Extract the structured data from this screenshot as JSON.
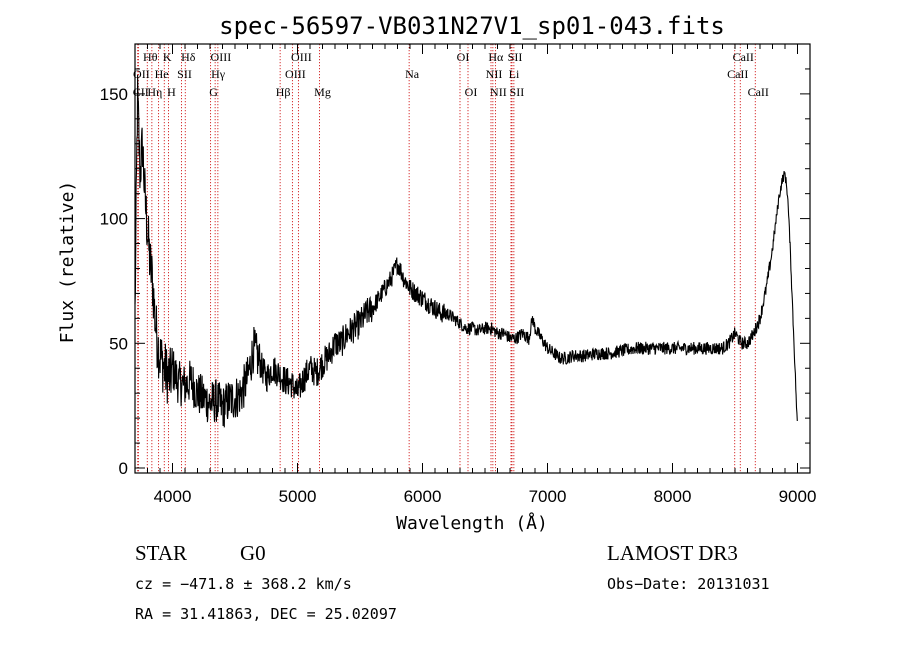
{
  "chart_data": {
    "type": "line",
    "title": "spec-56597-VB031N27V1_sp01-043.fits",
    "xlabel": "Wavelength (Å)",
    "ylabel": "Flux (relative)",
    "xlim": [
      3700,
      9100
    ],
    "ylim": [
      -2,
      170
    ],
    "xticks": [
      4000,
      5000,
      6000,
      7000,
      8000,
      9000
    ],
    "yticks": [
      0,
      50,
      100,
      150
    ],
    "grid": false,
    "series": [
      {
        "name": "spectrum",
        "x": [
          3700,
          3720,
          3740,
          3760,
          3780,
          3800,
          3820,
          3840,
          3860,
          3880,
          3900,
          3920,
          3950,
          3980,
          4000,
          4050,
          4100,
          4150,
          4200,
          4250,
          4300,
          4350,
          4400,
          4450,
          4500,
          4550,
          4600,
          4650,
          4700,
          4750,
          4800,
          4850,
          4900,
          4950,
          5000,
          5050,
          5100,
          5150,
          5200,
          5250,
          5300,
          5350,
          5400,
          5450,
          5500,
          5550,
          5600,
          5650,
          5700,
          5750,
          5800,
          5820,
          5850,
          5900,
          5950,
          6000,
          6050,
          6100,
          6150,
          6200,
          6250,
          6300,
          6350,
          6400,
          6450,
          6500,
          6550,
          6600,
          6650,
          6700,
          6750,
          6800,
          6850,
          6880,
          6900,
          6950,
          7000,
          7050,
          7100,
          7150,
          7200,
          7300,
          7400,
          7500,
          7600,
          7700,
          7800,
          7900,
          8000,
          8100,
          8200,
          8300,
          8400,
          8450,
          8500,
          8550,
          8600,
          8650,
          8700,
          8750,
          8800,
          8850,
          8880,
          8900,
          8920,
          8940,
          8960,
          8980,
          9000
        ],
        "y": [
          62,
          150,
          118,
          130,
          108,
          95,
          82,
          75,
          60,
          50,
          45,
          42,
          38,
          36,
          40,
          34,
          33,
          35,
          30,
          28,
          26,
          27,
          24,
          27,
          28,
          30,
          36,
          48,
          42,
          36,
          40,
          38,
          35,
          34,
          30,
          36,
          40,
          38,
          42,
          45,
          50,
          50,
          54,
          56,
          58,
          62,
          64,
          68,
          72,
          76,
          82,
          80,
          76,
          72,
          70,
          68,
          66,
          64,
          62,
          62,
          60,
          58,
          56,
          56,
          55,
          56,
          56,
          54,
          54,
          52,
          52,
          54,
          52,
          60,
          56,
          52,
          48,
          46,
          44,
          44,
          45,
          45,
          46,
          46,
          47,
          48,
          48,
          48,
          48,
          48,
          48,
          48,
          48,
          50,
          54,
          50,
          50,
          54,
          60,
          72,
          88,
          108,
          116,
          118,
          110,
          90,
          65,
          40,
          15
        ]
      }
    ],
    "lines": [
      {
        "name": "CII",
        "wavelength": 3722
      },
      {
        "name": "OII",
        "wavelength": 3727
      },
      {
        "name": "Hθ",
        "wavelength": 3798
      },
      {
        "name": "Hη",
        "wavelength": 3835
      },
      {
        "name": "CaII K",
        "label": "K",
        "wavelength": 3934
      },
      {
        "name": "He",
        "wavelength": 3889
      },
      {
        "name": "CaII H",
        "label": "H",
        "wavelength": 3968
      },
      {
        "name": "SII",
        "wavelength": 4072
      },
      {
        "name": "Hδ",
        "wavelength": 4102
      },
      {
        "name": "G",
        "wavelength": 4305
      },
      {
        "name": "Hγ",
        "wavelength": 4341
      },
      {
        "name": "OIII",
        "wavelength": 4363
      },
      {
        "name": "Hβ",
        "wavelength": 4861
      },
      {
        "name": "OIII",
        "wavelength": 4959
      },
      {
        "name": "OIII",
        "wavelength": 5007
      },
      {
        "name": "Mg",
        "wavelength": 5176
      },
      {
        "name": "Na",
        "wavelength": 5893
      },
      {
        "name": "OI",
        "wavelength": 6300
      },
      {
        "name": "OI",
        "wavelength": 6364
      },
      {
        "name": "NII",
        "wavelength": 6548
      },
      {
        "name": "Hα",
        "wavelength": 6563
      },
      {
        "name": "NII",
        "wavelength": 6583
      },
      {
        "name": "Li",
        "wavelength": 6708
      },
      {
        "name": "SII",
        "wavelength": 6716
      },
      {
        "name": "SII",
        "wavelength": 6731
      },
      {
        "name": "CaII",
        "wavelength": 8498
      },
      {
        "name": "CaII",
        "wavelength": 8542
      },
      {
        "name": "CaII",
        "wavelength": 8662
      }
    ]
  },
  "line_labels": [
    {
      "text": "Hθ",
      "wl": 3798,
      "row": 1
    },
    {
      "text": "K",
      "wl": 3934,
      "row": 1
    },
    {
      "text": "Hδ",
      "wl": 4102,
      "row": 1
    },
    {
      "text": "OIII",
      "wl": 4363,
      "row": 1
    },
    {
      "text": "OIII",
      "wl": 5007,
      "row": 1
    },
    {
      "text": "OI",
      "wl": 6300,
      "row": 1
    },
    {
      "text": "Hα",
      "wl": 6563,
      "row": 1
    },
    {
      "text": "SII",
      "wl": 6716,
      "row": 1
    },
    {
      "text": "CaII",
      "wl": 8542,
      "row": 1
    },
    {
      "text": "OII",
      "wl": 3727,
      "row": 2
    },
    {
      "text": "He",
      "wl": 3889,
      "row": 2
    },
    {
      "text": "SII",
      "wl": 4072,
      "row": 2
    },
    {
      "text": "Hγ",
      "wl": 4341,
      "row": 2
    },
    {
      "text": "OIII",
      "wl": 4959,
      "row": 2
    },
    {
      "text": "NII",
      "wl": 6548,
      "row": 2
    },
    {
      "text": "Li",
      "wl": 6708,
      "row": 2
    },
    {
      "text": "CaII",
      "wl": 8498,
      "row": 2
    },
    {
      "text": "CII",
      "wl": 3722,
      "row": 3
    },
    {
      "text": "Hη",
      "wl": 3835,
      "row": 3
    },
    {
      "text": "H",
      "wl": 3968,
      "row": 3
    },
    {
      "text": "G",
      "wl": 4305,
      "row": 3
    },
    {
      "text": "Hβ",
      "wl": 4861,
      "row": 3
    },
    {
      "text": "Mg",
      "wl": 5176,
      "row": 3
    },
    {
      "text": "Na",
      "wl": 5893,
      "row": 2
    },
    {
      "text": "OI",
      "wl": 6364,
      "row": 3
    },
    {
      "text": "NII",
      "wl": 6583,
      "row": 3
    },
    {
      "text": "SII",
      "wl": 6731,
      "row": 3
    },
    {
      "text": "CaII",
      "wl": 8662,
      "row": 3
    }
  ],
  "info": {
    "object_class": "STAR",
    "subclass": "G0",
    "survey": "LAMOST DR3",
    "cz": "cz = −471.8 ± 368.2 km/s",
    "obs_date": "Obs−Date: 20131031",
    "coords": "RA =  31.41863, DEC =  25.02097"
  },
  "colors": {
    "spectrum": "#000000",
    "line_markers": "#cc0000",
    "background": "#ffffff"
  }
}
